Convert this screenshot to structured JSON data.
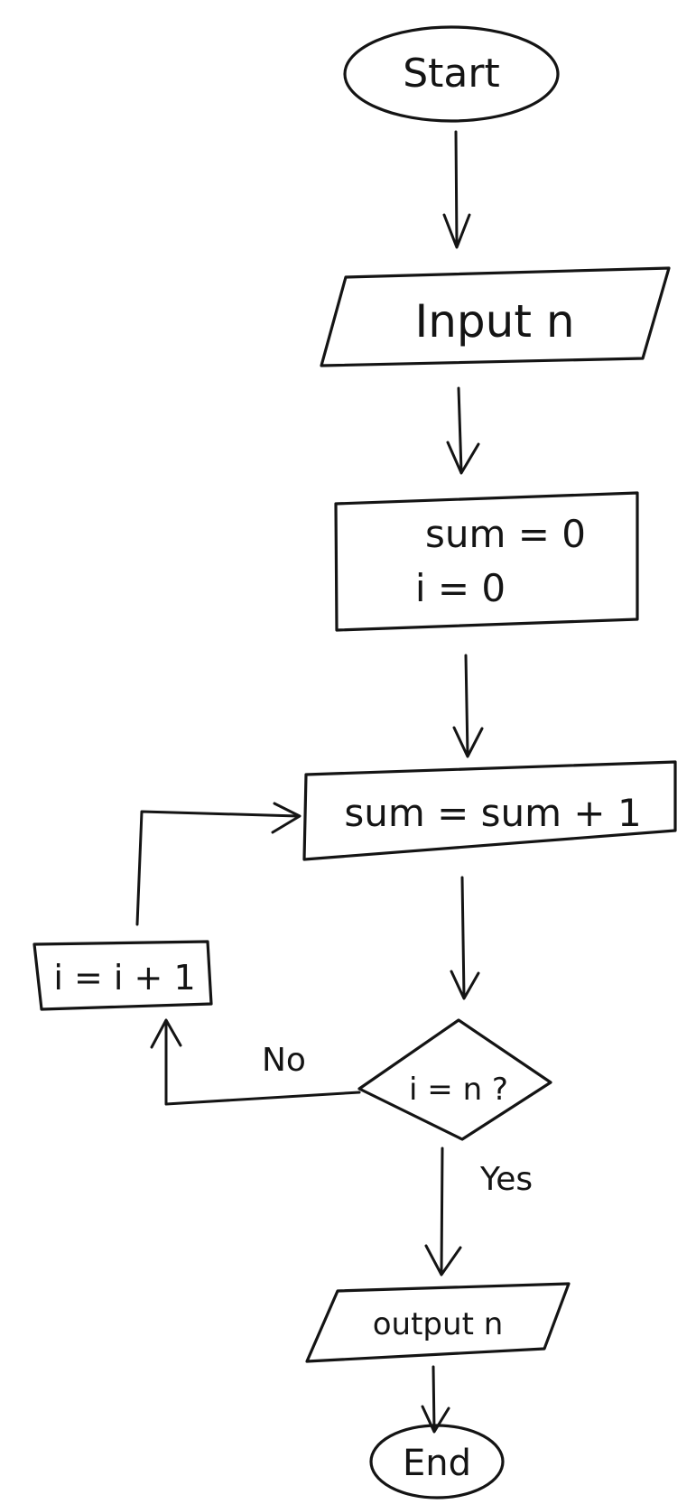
{
  "diagram": {
    "type": "flowchart",
    "style": "hand-drawn",
    "ink_color": "#141414",
    "background": "#ffffff",
    "nodes": {
      "start": {
        "shape": "terminal",
        "text": "Start"
      },
      "input": {
        "shape": "input-output",
        "text": "Input n"
      },
      "init": {
        "shape": "process",
        "lines": [
          "sum = 0",
          "i = 0"
        ]
      },
      "accumulate": {
        "shape": "process",
        "text": "sum = sum + 1"
      },
      "increment": {
        "shape": "process",
        "text": "i = i + 1"
      },
      "decision": {
        "shape": "decision",
        "text": "i = n ?"
      },
      "output": {
        "shape": "input-output",
        "text": "output n"
      },
      "end": {
        "shape": "terminal",
        "text": "End"
      }
    },
    "edges": {
      "no_label": "No",
      "yes_label": "Yes"
    }
  }
}
